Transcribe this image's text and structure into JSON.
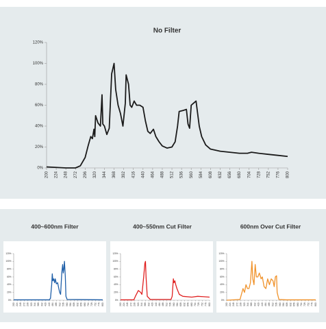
{
  "chart_data": [
    {
      "type": "line",
      "title": "No Filter",
      "x": [
        200,
        224,
        248,
        272,
        284,
        296,
        304,
        310,
        314,
        318,
        320,
        322,
        328,
        334,
        338,
        340,
        344,
        350,
        356,
        362,
        368,
        372,
        378,
        384,
        390,
        396,
        398,
        404,
        408,
        412,
        418,
        424,
        432,
        440,
        446,
        452,
        458,
        466,
        472,
        480,
        488,
        500,
        512,
        520,
        526,
        530,
        540,
        548,
        552,
        556,
        560,
        566,
        572,
        580,
        586,
        596,
        608,
        632,
        656,
        680,
        700,
        710,
        728,
        752,
        776,
        800
      ],
      "series": [
        {
          "color": "#1a1a1a",
          "values": [
            1,
            0.5,
            0,
            0,
            2,
            10,
            22,
            30,
            28,
            37,
            30,
            50,
            43,
            40,
            70,
            42,
            40,
            32,
            38,
            90,
            100,
            75,
            60,
            52,
            40,
            62,
            89,
            80,
            60,
            58,
            64,
            60,
            60,
            58,
            45,
            35,
            33,
            37,
            30,
            25,
            21,
            19,
            20,
            25,
            40,
            54,
            55,
            56,
            42,
            38,
            60,
            62,
            64,
            40,
            30,
            22,
            18,
            16,
            15,
            14,
            14,
            15,
            14,
            13,
            12,
            11
          ]
        }
      ],
      "xlim": [
        200,
        800
      ],
      "ylim": [
        0,
        120
      ],
      "xticks": [
        200,
        224,
        248,
        272,
        296,
        320,
        344,
        368,
        392,
        416,
        440,
        464,
        488,
        512,
        536,
        560,
        584,
        608,
        632,
        656,
        680,
        704,
        728,
        752,
        776,
        800
      ],
      "yticks": [
        {
          "value": 0,
          "label": "0%"
        },
        {
          "value": 20,
          "label": "20%"
        },
        {
          "value": 40,
          "label": "40%"
        },
        {
          "value": 60,
          "label": "60%"
        },
        {
          "value": 80,
          "label": "80%"
        },
        {
          "value": 100,
          "label": "100%"
        },
        {
          "value": 120,
          "label": "120%"
        }
      ]
    },
    {
      "type": "line",
      "title": "400~600nm  Filter",
      "x": [
        200,
        300,
        440,
        448,
        456,
        460,
        464,
        470,
        476,
        480,
        488,
        496,
        504,
        510,
        516,
        524,
        530,
        534,
        538,
        542,
        548,
        552,
        560,
        800
      ],
      "series": [
        {
          "color": "#1f5fa8",
          "values": [
            1,
            1,
            1,
            5,
            40,
            68,
            50,
            55,
            45,
            55,
            42,
            45,
            30,
            20,
            15,
            70,
            92,
            70,
            80,
            100,
            60,
            10,
            2,
            1
          ]
        }
      ],
      "xlim": [
        200,
        800
      ],
      "ylim": [
        0,
        120
      ],
      "xticks": [
        200,
        224,
        248,
        272,
        296,
        320,
        344,
        368,
        392,
        416,
        440,
        464,
        488,
        512,
        536,
        560,
        584,
        608,
        632,
        656,
        680,
        704,
        728,
        752,
        776,
        800
      ],
      "yticks": [
        {
          "value": 0,
          "label": "0%"
        },
        {
          "value": 20,
          "label": "20%"
        },
        {
          "value": 40,
          "label": "40%"
        },
        {
          "value": 60,
          "label": "60%"
        },
        {
          "value": 80,
          "label": "80%"
        },
        {
          "value": 100,
          "label": "100%"
        },
        {
          "value": 120,
          "label": "120%"
        }
      ]
    },
    {
      "type": "line",
      "title": "400~550nm Cut Filter",
      "x": [
        200,
        290,
        300,
        320,
        336,
        344,
        356,
        364,
        368,
        372,
        380,
        400,
        540,
        548,
        556,
        560,
        566,
        572,
        580,
        596,
        620,
        680,
        720,
        760,
        800
      ],
      "series": [
        {
          "color": "#e02020",
          "values": [
            1,
            1,
            10,
            25,
            20,
            15,
            60,
            95,
            100,
            60,
            10,
            2,
            2,
            10,
            55,
            45,
            50,
            40,
            30,
            15,
            10,
            8,
            10,
            9,
            8
          ]
        }
      ],
      "xlim": [
        200,
        800
      ],
      "ylim": [
        0,
        120
      ],
      "xticks": [
        200,
        224,
        248,
        272,
        296,
        320,
        344,
        368,
        392,
        416,
        440,
        464,
        488,
        512,
        536,
        560,
        584,
        608,
        632,
        656,
        680,
        704,
        728,
        752,
        776,
        800
      ],
      "yticks": [
        {
          "value": 0,
          "label": "0%"
        },
        {
          "value": 20,
          "label": "20%"
        },
        {
          "value": 40,
          "label": "40%"
        },
        {
          "value": 60,
          "label": "60%"
        },
        {
          "value": 80,
          "label": "80%"
        },
        {
          "value": 100,
          "label": "100%"
        },
        {
          "value": 120,
          "label": "120%"
        }
      ]
    },
    {
      "type": "line",
      "title": "600nm Over Cut Filter",
      "x": [
        200,
        290,
        310,
        320,
        330,
        340,
        350,
        360,
        370,
        376,
        384,
        392,
        400,
        410,
        420,
        432,
        440,
        452,
        464,
        476,
        488,
        500,
        512,
        520,
        528,
        536,
        540,
        552,
        600,
        800
      ],
      "series": [
        {
          "color": "#f0922a",
          "values": [
            0,
            2,
            30,
            20,
            40,
            30,
            30,
            45,
            100,
            55,
            40,
            92,
            60,
            60,
            70,
            55,
            60,
            35,
            30,
            55,
            40,
            55,
            50,
            35,
            60,
            63,
            20,
            2,
            1,
            1
          ]
        }
      ],
      "xlim": [
        200,
        800
      ],
      "ylim": [
        0,
        120
      ],
      "xticks": [
        200,
        224,
        248,
        272,
        296,
        320,
        344,
        368,
        392,
        416,
        440,
        464,
        488,
        512,
        536,
        560,
        584,
        608,
        632,
        656,
        680,
        704,
        728,
        752,
        776,
        800
      ],
      "yticks": [
        {
          "value": 0,
          "label": "0%"
        },
        {
          "value": 20,
          "label": "20%"
        },
        {
          "value": 40,
          "label": "40%"
        },
        {
          "value": 60,
          "label": "60%"
        },
        {
          "value": 80,
          "label": "80%"
        },
        {
          "value": 100,
          "label": "100%"
        },
        {
          "value": 120,
          "label": "120%"
        }
      ]
    }
  ]
}
